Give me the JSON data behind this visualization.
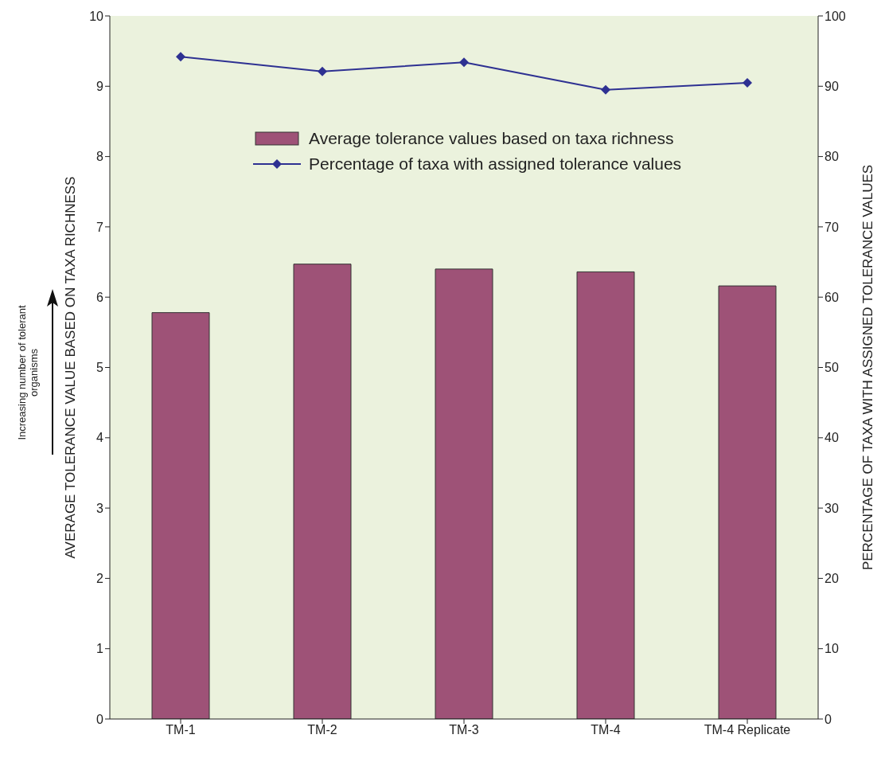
{
  "chart_data": {
    "type": "bar",
    "categories": [
      "TM-1",
      "TM-2",
      "TM-3",
      "TM-4",
      "TM-4 Replicate"
    ],
    "series": [
      {
        "name": "Average tolerance values based on taxa richness",
        "color": "#9e5277",
        "values": [
          5.78,
          6.47,
          6.4,
          6.36,
          6.16
        ]
      },
      {
        "name": "Percentage of taxa with assigned tolerance values",
        "type": "line",
        "axis": "y2",
        "color": "#2e3192",
        "marker": "diamond",
        "values": [
          94.2,
          92.1,
          93.4,
          89.5,
          90.5
        ]
      }
    ],
    "ylabel": "AVERAGE TOLERANCE VALUE BASED ON TAXA RICHNESS",
    "y2label": "PERCENTAGE OF TAXA WITH ASSIGNED TOLERANCE VALUES",
    "ylim": [
      0,
      10
    ],
    "yticks": [
      0,
      1,
      2,
      3,
      4,
      5,
      6,
      7,
      8,
      9,
      10
    ],
    "y2lim": [
      0,
      100
    ],
    "y2ticks": [
      0,
      10,
      20,
      30,
      40,
      50,
      60,
      70,
      80,
      90,
      100
    ],
    "annotations": [
      "Increasing number of tolerant organisms"
    ],
    "legend": "top",
    "grid": false
  }
}
